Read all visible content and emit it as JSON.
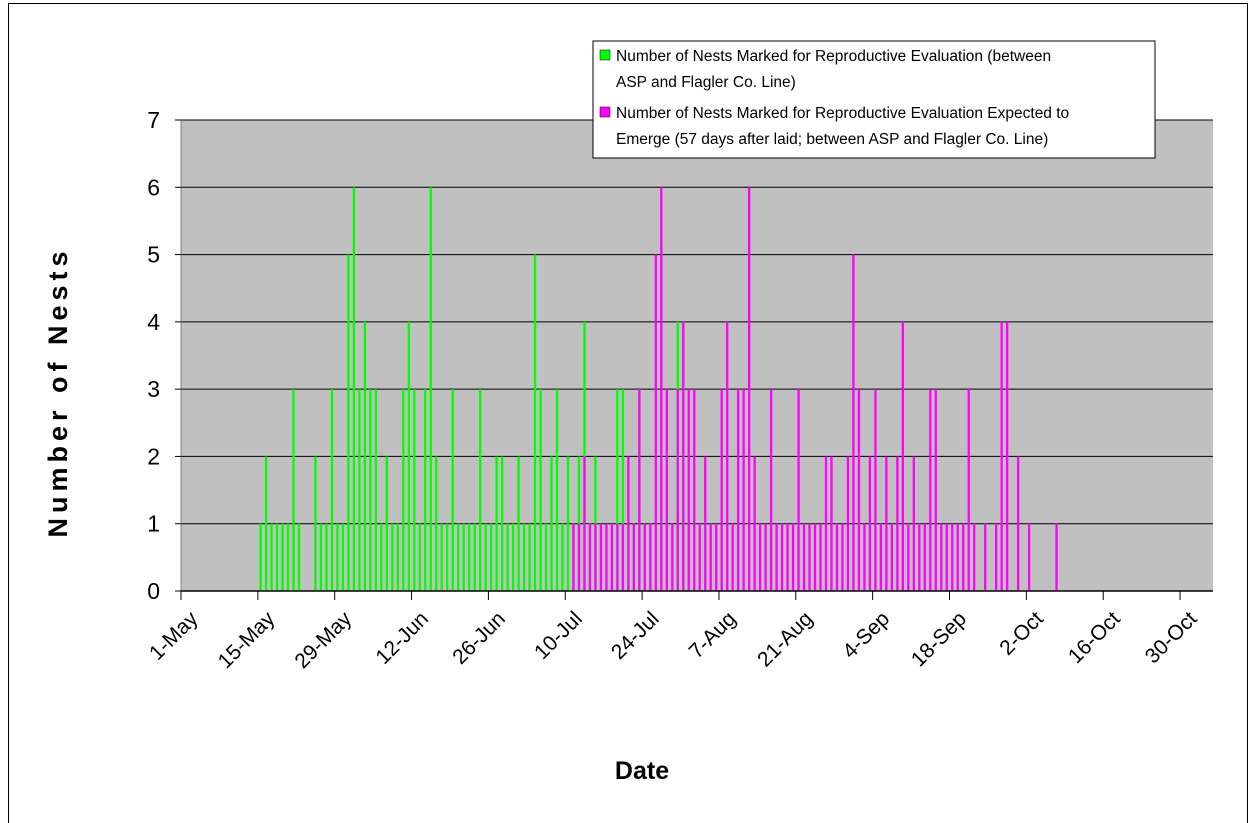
{
  "chart_data": {
    "type": "bar",
    "title": "",
    "xlabel": "Date",
    "ylabel": "Number of Nests",
    "ylim": [
      0,
      7
    ],
    "xlim": [
      "2008-05-01",
      "2008-11-05"
    ],
    "yticks": [
      "0",
      "1",
      "2",
      "3",
      "4",
      "5",
      "6",
      "7"
    ],
    "xticks": [
      {
        "date": "2008-05-01",
        "label": "1-May"
      },
      {
        "date": "2008-05-15",
        "label": "15-May"
      },
      {
        "date": "2008-05-29",
        "label": "29-May"
      },
      {
        "date": "2008-06-12",
        "label": "12-Jun"
      },
      {
        "date": "2008-06-26",
        "label": "26-Jun"
      },
      {
        "date": "2008-07-10",
        "label": "10-Jul"
      },
      {
        "date": "2008-07-24",
        "label": "24-Jul"
      },
      {
        "date": "2008-08-07",
        "label": "7-Aug"
      },
      {
        "date": "2008-08-21",
        "label": "21-Aug"
      },
      {
        "date": "2008-09-04",
        "label": "4-Sep"
      },
      {
        "date": "2008-09-18",
        "label": "18-Sep"
      },
      {
        "date": "2008-10-02",
        "label": "2-Oct"
      },
      {
        "date": "2008-10-16",
        "label": "16-Oct"
      },
      {
        "date": "2008-10-30",
        "label": "30-Oct"
      }
    ],
    "grid": true,
    "legend_position": "top-right",
    "series": [
      {
        "name": "Number of Nests Marked for Reproductive Evaluation (between ASP and Flagler Co. Line)",
        "color": "#00ff00",
        "x": [
          "2008-05-15",
          "2008-05-16",
          "2008-05-17",
          "2008-05-18",
          "2008-05-19",
          "2008-05-20",
          "2008-05-21",
          "2008-05-22",
          "2008-05-25",
          "2008-05-26",
          "2008-05-27",
          "2008-05-28",
          "2008-05-29",
          "2008-05-30",
          "2008-05-31",
          "2008-06-01",
          "2008-06-02",
          "2008-06-03",
          "2008-06-04",
          "2008-06-05",
          "2008-06-06",
          "2008-06-07",
          "2008-06-08",
          "2008-06-09",
          "2008-06-10",
          "2008-06-11",
          "2008-06-12",
          "2008-06-13",
          "2008-06-14",
          "2008-06-15",
          "2008-06-16",
          "2008-06-17",
          "2008-06-18",
          "2008-06-19",
          "2008-06-20",
          "2008-06-21",
          "2008-06-22",
          "2008-06-23",
          "2008-06-24",
          "2008-06-25",
          "2008-06-26",
          "2008-06-27",
          "2008-06-28",
          "2008-06-29",
          "2008-06-30",
          "2008-07-01",
          "2008-07-02",
          "2008-07-03",
          "2008-07-04",
          "2008-07-05",
          "2008-07-06",
          "2008-07-07",
          "2008-07-08",
          "2008-07-09",
          "2008-07-10",
          "2008-07-11",
          "2008-07-12",
          "2008-07-13",
          "2008-07-14",
          "2008-07-15",
          "2008-07-19",
          "2008-07-20",
          "2008-07-21",
          "2008-07-22",
          "2008-07-23",
          "2008-07-24",
          "2008-07-25",
          "2008-07-30",
          "2008-07-31",
          "2008-08-01"
        ],
        "values": [
          1,
          2,
          1,
          1,
          1,
          1,
          3,
          1,
          2,
          1,
          1,
          3,
          1,
          1,
          5,
          6,
          3,
          4,
          3,
          3,
          1,
          2,
          1,
          1,
          3,
          4,
          3,
          1,
          3,
          6,
          2,
          1,
          1,
          3,
          1,
          1,
          1,
          1,
          3,
          1,
          1,
          2,
          2,
          1,
          1,
          2,
          1,
          1,
          5,
          3,
          1,
          2,
          3,
          1,
          2,
          1,
          2,
          4,
          1,
          2,
          3,
          3,
          1,
          1,
          3,
          1,
          1,
          4,
          4,
          1
        ]
      },
      {
        "name": "Number of Nests Marked for Reproductive Evaluation Expected to Emerge (57 days after laid; between ASP and Flagler Co. Line)",
        "color": "#ff00ff",
        "x": [
          "2008-07-11",
          "2008-07-12",
          "2008-07-13",
          "2008-07-14",
          "2008-07-15",
          "2008-07-16",
          "2008-07-17",
          "2008-07-18",
          "2008-07-19",
          "2008-07-20",
          "2008-07-21",
          "2008-07-22",
          "2008-07-23",
          "2008-07-24",
          "2008-07-25",
          "2008-07-26",
          "2008-07-27",
          "2008-07-28",
          "2008-07-29",
          "2008-07-30",
          "2008-07-31",
          "2008-08-01",
          "2008-08-02",
          "2008-08-03",
          "2008-08-04",
          "2008-08-05",
          "2008-08-06",
          "2008-08-07",
          "2008-08-08",
          "2008-08-09",
          "2008-08-10",
          "2008-08-11",
          "2008-08-12",
          "2008-08-13",
          "2008-08-14",
          "2008-08-15",
          "2008-08-16",
          "2008-08-17",
          "2008-08-18",
          "2008-08-19",
          "2008-08-20",
          "2008-08-21",
          "2008-08-22",
          "2008-08-23",
          "2008-08-24",
          "2008-08-25",
          "2008-08-26",
          "2008-08-27",
          "2008-08-28",
          "2008-08-29",
          "2008-08-30",
          "2008-08-31",
          "2008-09-01",
          "2008-09-02",
          "2008-09-03",
          "2008-09-04",
          "2008-09-05",
          "2008-09-06",
          "2008-09-07",
          "2008-09-08",
          "2008-09-09",
          "2008-09-10",
          "2008-09-11",
          "2008-09-12",
          "2008-09-13",
          "2008-09-14",
          "2008-09-15",
          "2008-09-16",
          "2008-09-17",
          "2008-09-18",
          "2008-09-19",
          "2008-09-20",
          "2008-09-21",
          "2008-09-22",
          "2008-09-24",
          "2008-09-26",
          "2008-09-27",
          "2008-09-28",
          "2008-09-30",
          "2008-10-02",
          "2008-10-07"
        ],
        "values": [
          1,
          1,
          2,
          1,
          1,
          1,
          1,
          1,
          1,
          1,
          2,
          1,
          3,
          1,
          1,
          5,
          6,
          3,
          1,
          3,
          4,
          3,
          3,
          1,
          2,
          1,
          1,
          3,
          4,
          1,
          3,
          3,
          6,
          2,
          1,
          1,
          3,
          1,
          1,
          1,
          1,
          3,
          1,
          1,
          1,
          1,
          2,
          2,
          1,
          1,
          2,
          5,
          3,
          1,
          2,
          3,
          1,
          2,
          1,
          2,
          4,
          1,
          2,
          1,
          1,
          3,
          3,
          1,
          1,
          1,
          1,
          1,
          3,
          1,
          1,
          1,
          4,
          4,
          2,
          1,
          1
        ]
      }
    ]
  }
}
